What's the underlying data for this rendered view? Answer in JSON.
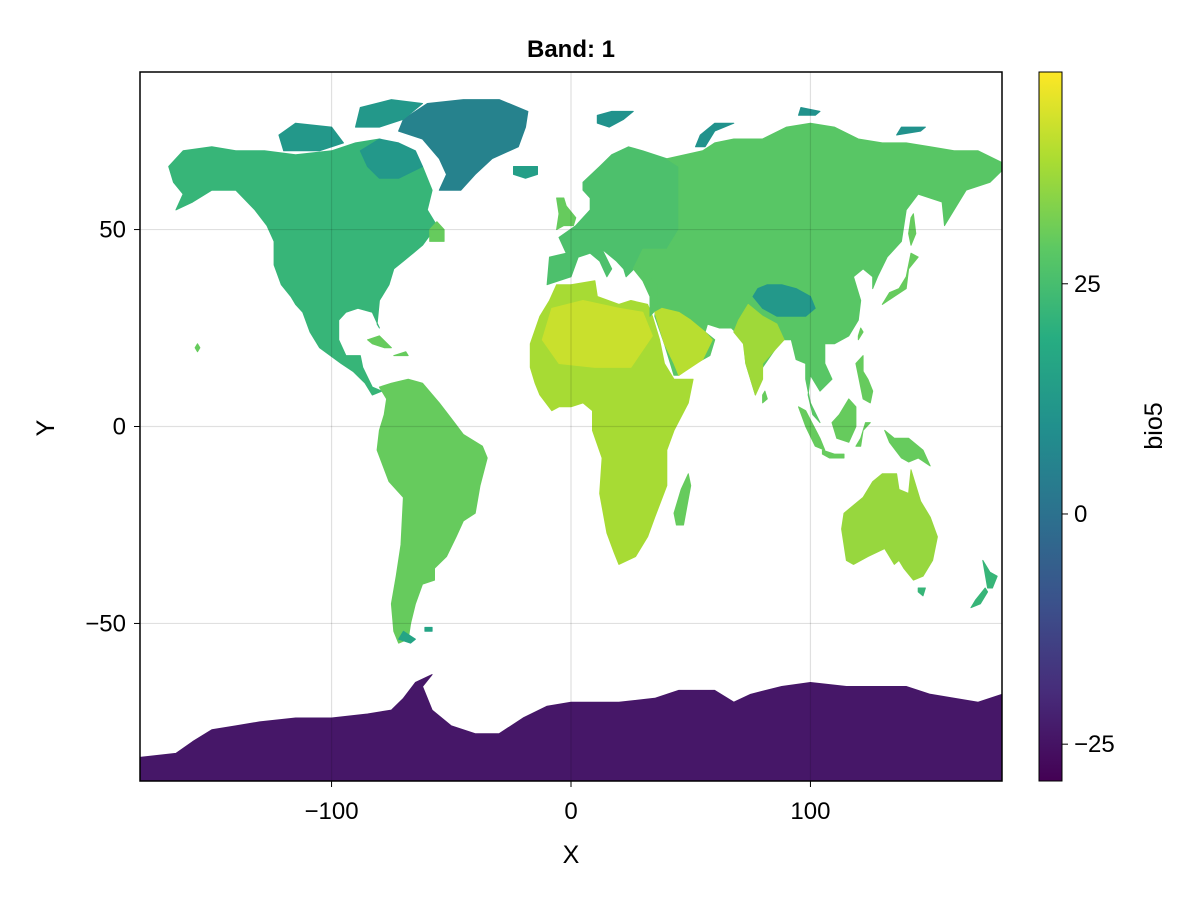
{
  "title": "Band: 1",
  "x_axis": {
    "label": "X",
    "range": [
      -180,
      180
    ],
    "ticks": [
      -100,
      0,
      100
    ],
    "tick_labels": [
      "−100",
      "0",
      "100"
    ]
  },
  "y_axis": {
    "label": "Y",
    "range": [
      -90,
      90
    ],
    "ticks": [
      -50,
      0,
      50
    ],
    "tick_labels": [
      "−50",
      "0",
      "50"
    ]
  },
  "colorbar": {
    "label": "bio5",
    "range": [
      -29,
      48
    ],
    "ticks": [
      -25,
      0,
      25
    ],
    "tick_labels": [
      "−25",
      "0",
      "25"
    ],
    "colormap": "viridis",
    "stops": [
      "#440154",
      "#472c7a",
      "#3b518b",
      "#2c718e",
      "#21908d",
      "#27ad81",
      "#5cc863",
      "#aadc32",
      "#fde725"
    ]
  },
  "grid": true,
  "missing_color": "#ffffff",
  "regions": [
    {
      "name": "North America",
      "value": 22
    },
    {
      "name": "Greenland",
      "value": 5
    },
    {
      "name": "South America",
      "value": 30
    },
    {
      "name": "Europe",
      "value": 26
    },
    {
      "name": "Asia",
      "value": 28
    },
    {
      "name": "Tibetan Plateau",
      "value": 12
    },
    {
      "name": "Arabian Peninsula",
      "value": 40
    },
    {
      "name": "India",
      "value": 37
    },
    {
      "name": "Africa",
      "value": 38
    },
    {
      "name": "Sahara",
      "value": 42
    },
    {
      "name": "Southeast Asia",
      "value": 30
    },
    {
      "name": "Australia",
      "value": 36
    },
    {
      "name": "Antarctica",
      "value": -24
    }
  ]
}
